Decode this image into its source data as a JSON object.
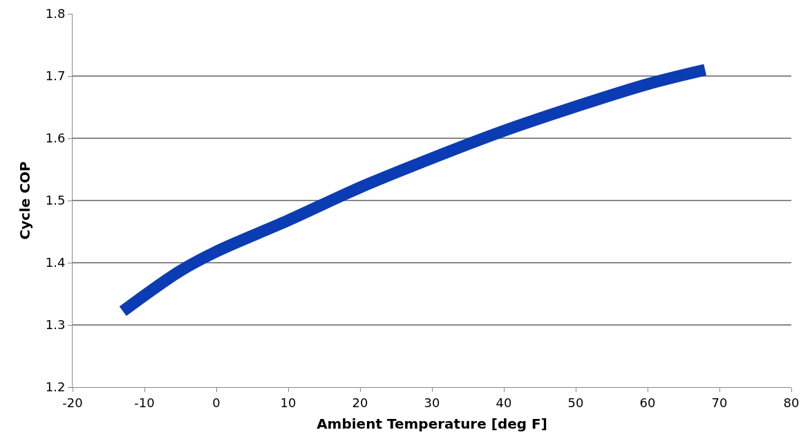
{
  "chart_data": {
    "type": "line",
    "xlabel": "Ambient Temperature [deg F]",
    "ylabel": "Cycle COP",
    "x": [
      -13,
      -5,
      0,
      10,
      20,
      30,
      40,
      50,
      60,
      68
    ],
    "series": [
      {
        "color": "#0b3cb4",
        "values": [
          1.322,
          1.387,
          1.418,
          1.468,
          1.521,
          1.568,
          1.612,
          1.651,
          1.687,
          1.71
        ]
      }
    ],
    "xlim": [
      -20,
      80
    ],
    "xticks": [
      -20,
      -10,
      0,
      10,
      20,
      30,
      40,
      50,
      60,
      70,
      80
    ],
    "ylim": [
      1.2,
      1.8
    ],
    "yticks": [
      1.2,
      1.3,
      1.4,
      1.5,
      1.6,
      1.7,
      1.8
    ],
    "grid": "y",
    "legend": false,
    "marker": "none",
    "line_style": "solid"
  }
}
